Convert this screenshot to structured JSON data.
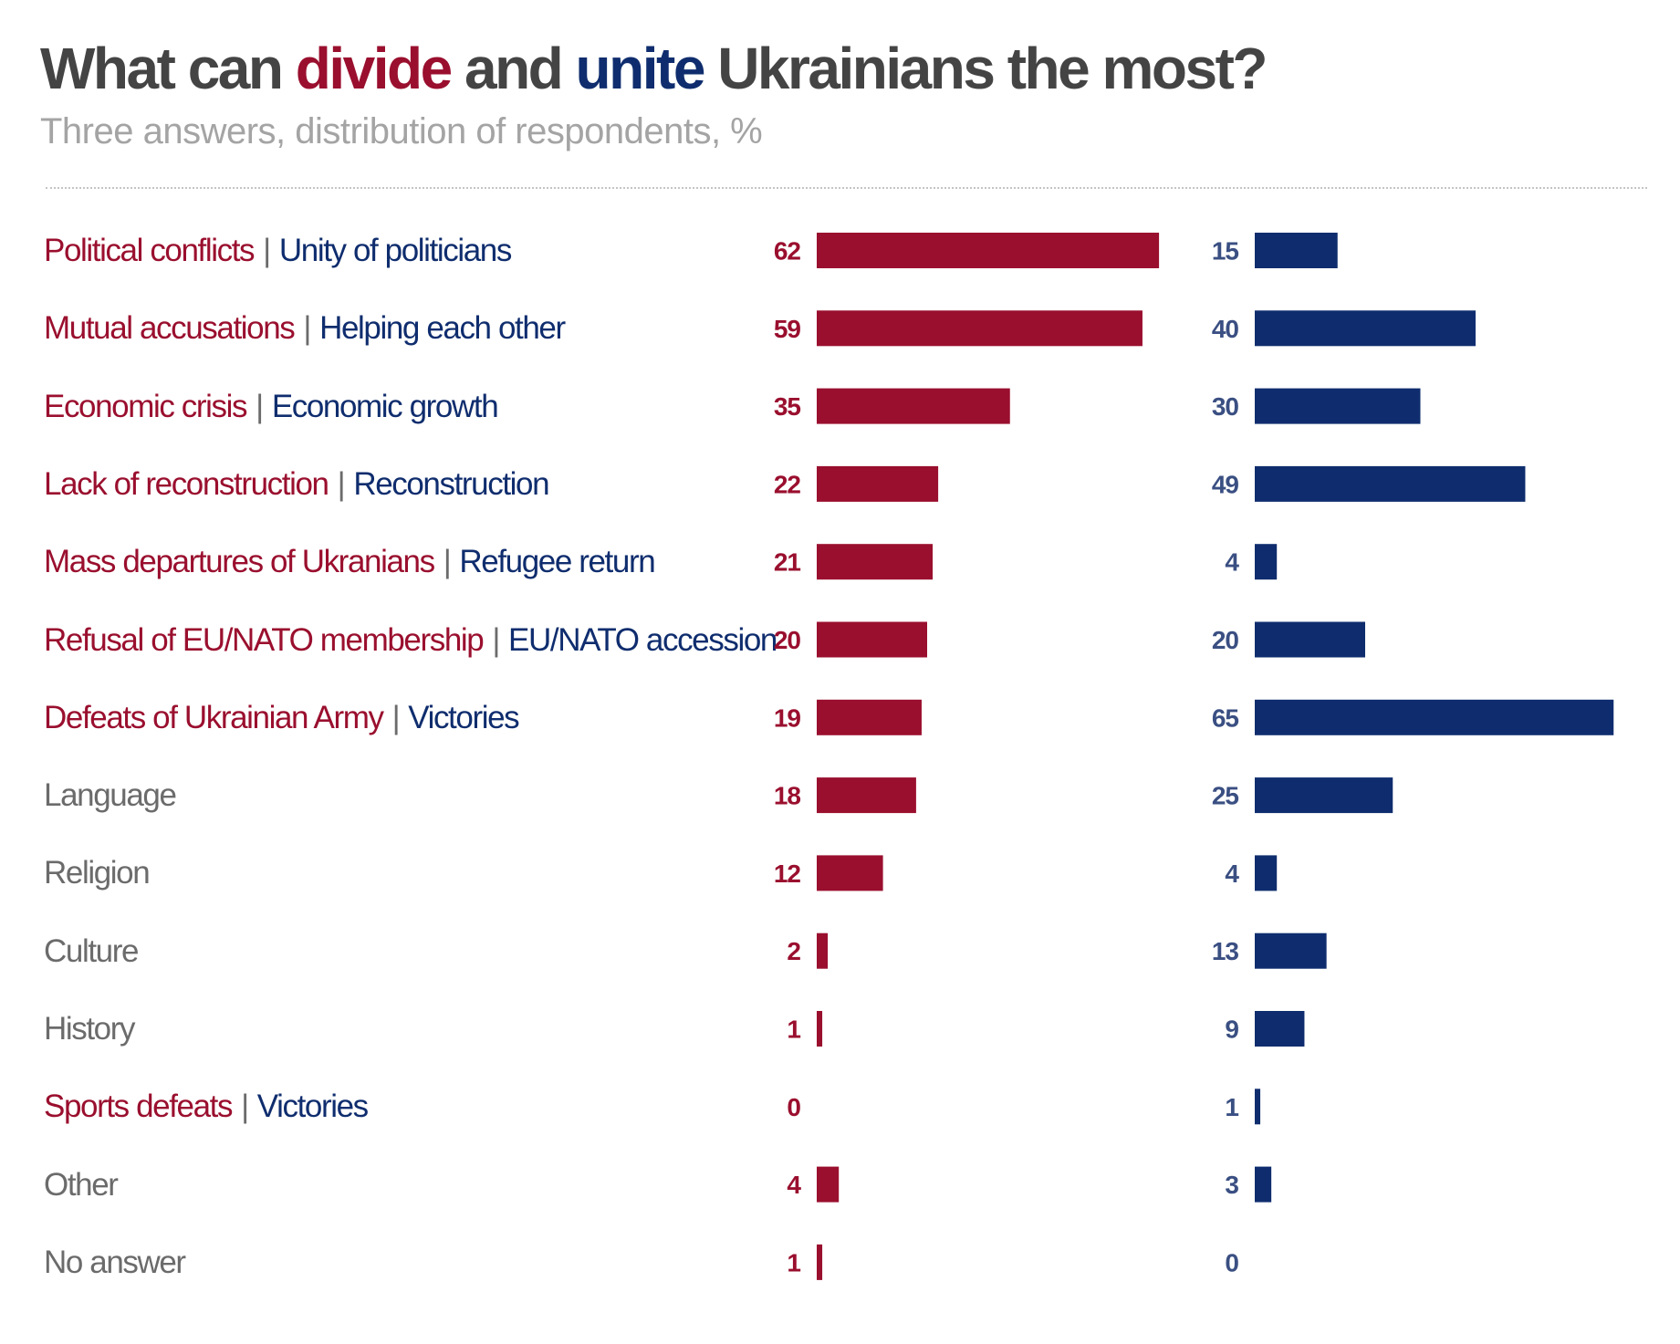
{
  "title": {
    "part1": "What can ",
    "divide_word": "divide",
    "part2": " and ",
    "unite_word": "unite",
    "part3": " Ukrainians the most?"
  },
  "subtitle": "Three answers, distribution of respondents, %",
  "colors": {
    "divide": "#9a0f2e",
    "unite": "#0f2d6e",
    "neutral_label": "#6b6b6b",
    "title": "#444444",
    "subtitle": "#a4a4a4"
  },
  "rows": [
    {
      "divide_label": "Political conflicts",
      "unite_label": "Unity of politicians",
      "neutral_label": ""
    },
    {
      "divide_label": "Mutual accusations",
      "unite_label": "Helping each other",
      "neutral_label": ""
    },
    {
      "divide_label": "Economic crisis",
      "unite_label": "Economic growth",
      "neutral_label": ""
    },
    {
      "divide_label": "Lack of reconstruction",
      "unite_label": "Reconstruction",
      "neutral_label": ""
    },
    {
      "divide_label": "Mass departures of Ukranians",
      "unite_label": "Refugee return",
      "neutral_label": ""
    },
    {
      "divide_label": "Refusal of EU/NATO membership",
      "unite_label": "EU/NATO accession",
      "neutral_label": ""
    },
    {
      "divide_label": "Defeats of Ukrainian Army",
      "unite_label": "Victories",
      "neutral_label": ""
    },
    {
      "divide_label": "",
      "unite_label": "",
      "neutral_label": "Language"
    },
    {
      "divide_label": "",
      "unite_label": "",
      "neutral_label": "Religion"
    },
    {
      "divide_label": "",
      "unite_label": "",
      "neutral_label": "Culture"
    },
    {
      "divide_label": "",
      "unite_label": "",
      "neutral_label": "History"
    },
    {
      "divide_label": "Sports defeats",
      "unite_label": "Victories",
      "neutral_label": ""
    },
    {
      "divide_label": "",
      "unite_label": "",
      "neutral_label": "Other"
    },
    {
      "divide_label": "",
      "unite_label": "",
      "neutral_label": "No answer"
    }
  ],
  "separator": "|",
  "chart_data": {
    "type": "bar",
    "orientation": "horizontal",
    "categories": [
      "Political conflicts | Unity of politicians",
      "Mutual accusations | Helping each other",
      "Economic crisis | Economic growth",
      "Lack of reconstruction | Reconstruction",
      "Mass departures of Ukranians | Refugee return",
      "Refusal of EU/NATO membership | EU/NATO accession",
      "Defeats of Ukrainian Army | Victories",
      "Language",
      "Religion",
      "Culture",
      "History",
      "Sports defeats | Victories",
      "Other",
      "No answer"
    ],
    "series": [
      {
        "values": [
          62,
          59,
          35,
          22,
          21,
          20,
          19,
          18,
          12,
          2,
          1,
          0,
          4,
          1
        ],
        "color": "#9a0f2e"
      },
      {
        "values": [
          15,
          40,
          30,
          49,
          4,
          20,
          65,
          25,
          4,
          13,
          9,
          1,
          3,
          0
        ],
        "color": "#0f2d6e"
      }
    ],
    "title": "What can divide and unite Ukrainians the most?",
    "subtitle": "Three answers, distribution of respondents, %",
    "xlim": [
      0,
      65
    ],
    "grid": false,
    "legend": "none"
  }
}
